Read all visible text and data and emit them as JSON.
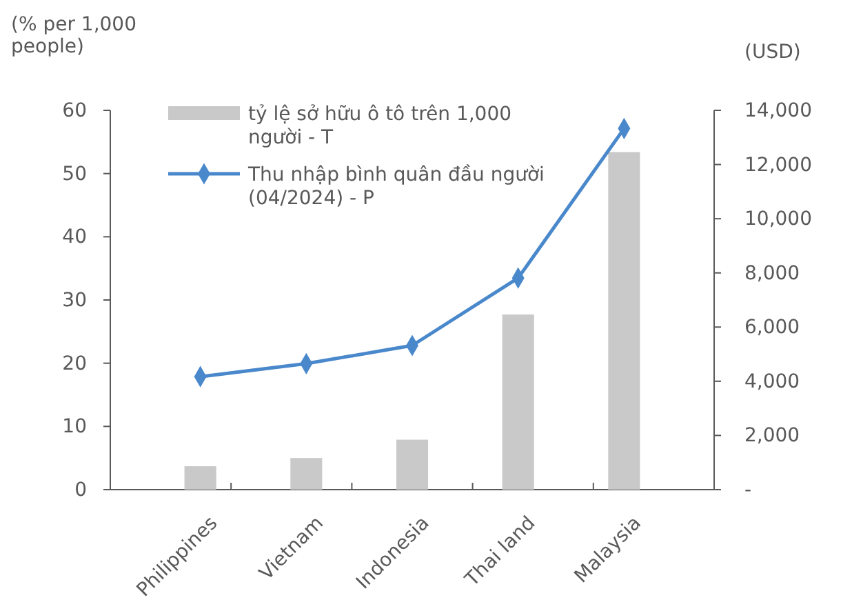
{
  "chart_data": {
    "type": "bar",
    "categories": [
      "Philippines",
      "Vietnam",
      "Indonesia",
      "Thai land",
      "Malaysia"
    ],
    "ylabel": "(% per 1,000 people)",
    "y2label": "(USD)",
    "ylim": [
      0,
      60
    ],
    "yticks": [
      0,
      10,
      20,
      30,
      40,
      50,
      60
    ],
    "y2lim": [
      0,
      14000
    ],
    "y2ticks": [
      {
        "value": 0,
        "label": "-"
      },
      {
        "value": 2000,
        "label": "2,000"
      },
      {
        "value": 4000,
        "label": "4,000"
      },
      {
        "value": 6000,
        "label": "6,000"
      },
      {
        "value": 8000,
        "label": "8,000"
      },
      {
        "value": 10000,
        "label": "10,000"
      },
      {
        "value": 12000,
        "label": "12,000"
      },
      {
        "value": 14000,
        "label": "14,000"
      }
    ],
    "legend": "top left",
    "grid": false,
    "series": [
      {
        "name": "tỷ lệ sở hữu ô tô trên 1,000 người - T",
        "color": "#c9c9c9",
        "values": [
          3.7,
          5.0,
          7.9,
          27.7,
          53.4
        ]
      },
      {
        "name": "Thu nhập bình quân đầu người (04/2024) - P",
        "type": "line",
        "axis": "y2",
        "color": "#4a88cc",
        "marker": "diamond",
        "values": [
          4170,
          4650,
          5320,
          7810,
          13330
        ]
      }
    ]
  }
}
